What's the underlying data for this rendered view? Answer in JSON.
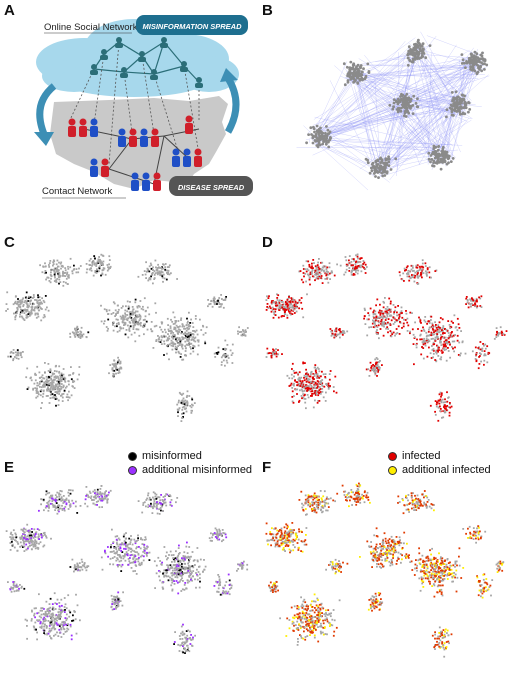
{
  "panels": {
    "a": "A",
    "b": "B",
    "c": "C",
    "d": "D",
    "e": "E",
    "f": "F"
  },
  "diagram": {
    "online_label": "Online Social Network",
    "contact_label": "Contact Network",
    "misinfo_badge": "MISINFORMATION SPREAD",
    "disease_badge": "DISEASE SPREAD"
  },
  "legend_left": [
    {
      "label": "misinformed",
      "color": "#000000"
    },
    {
      "label": "additional misinformed",
      "color": "#9b30ff"
    }
  ],
  "legend_right": [
    {
      "label": "infected",
      "color": "#e00000"
    },
    {
      "label": "additional infected",
      "color": "#ffee00"
    }
  ],
  "colors": {
    "cloud": "#9fd4ea",
    "map": "#c8c8c8",
    "misinfo_badge_bg": "#1e6f8f",
    "disease_badge_bg": "#555555",
    "person_blue": "#1f4fc6",
    "person_red": "#d01f2a",
    "node_teal": "#2b6e78",
    "network_edges": "#8f93f5",
    "cluster_gray": "#9a9a9a"
  }
}
